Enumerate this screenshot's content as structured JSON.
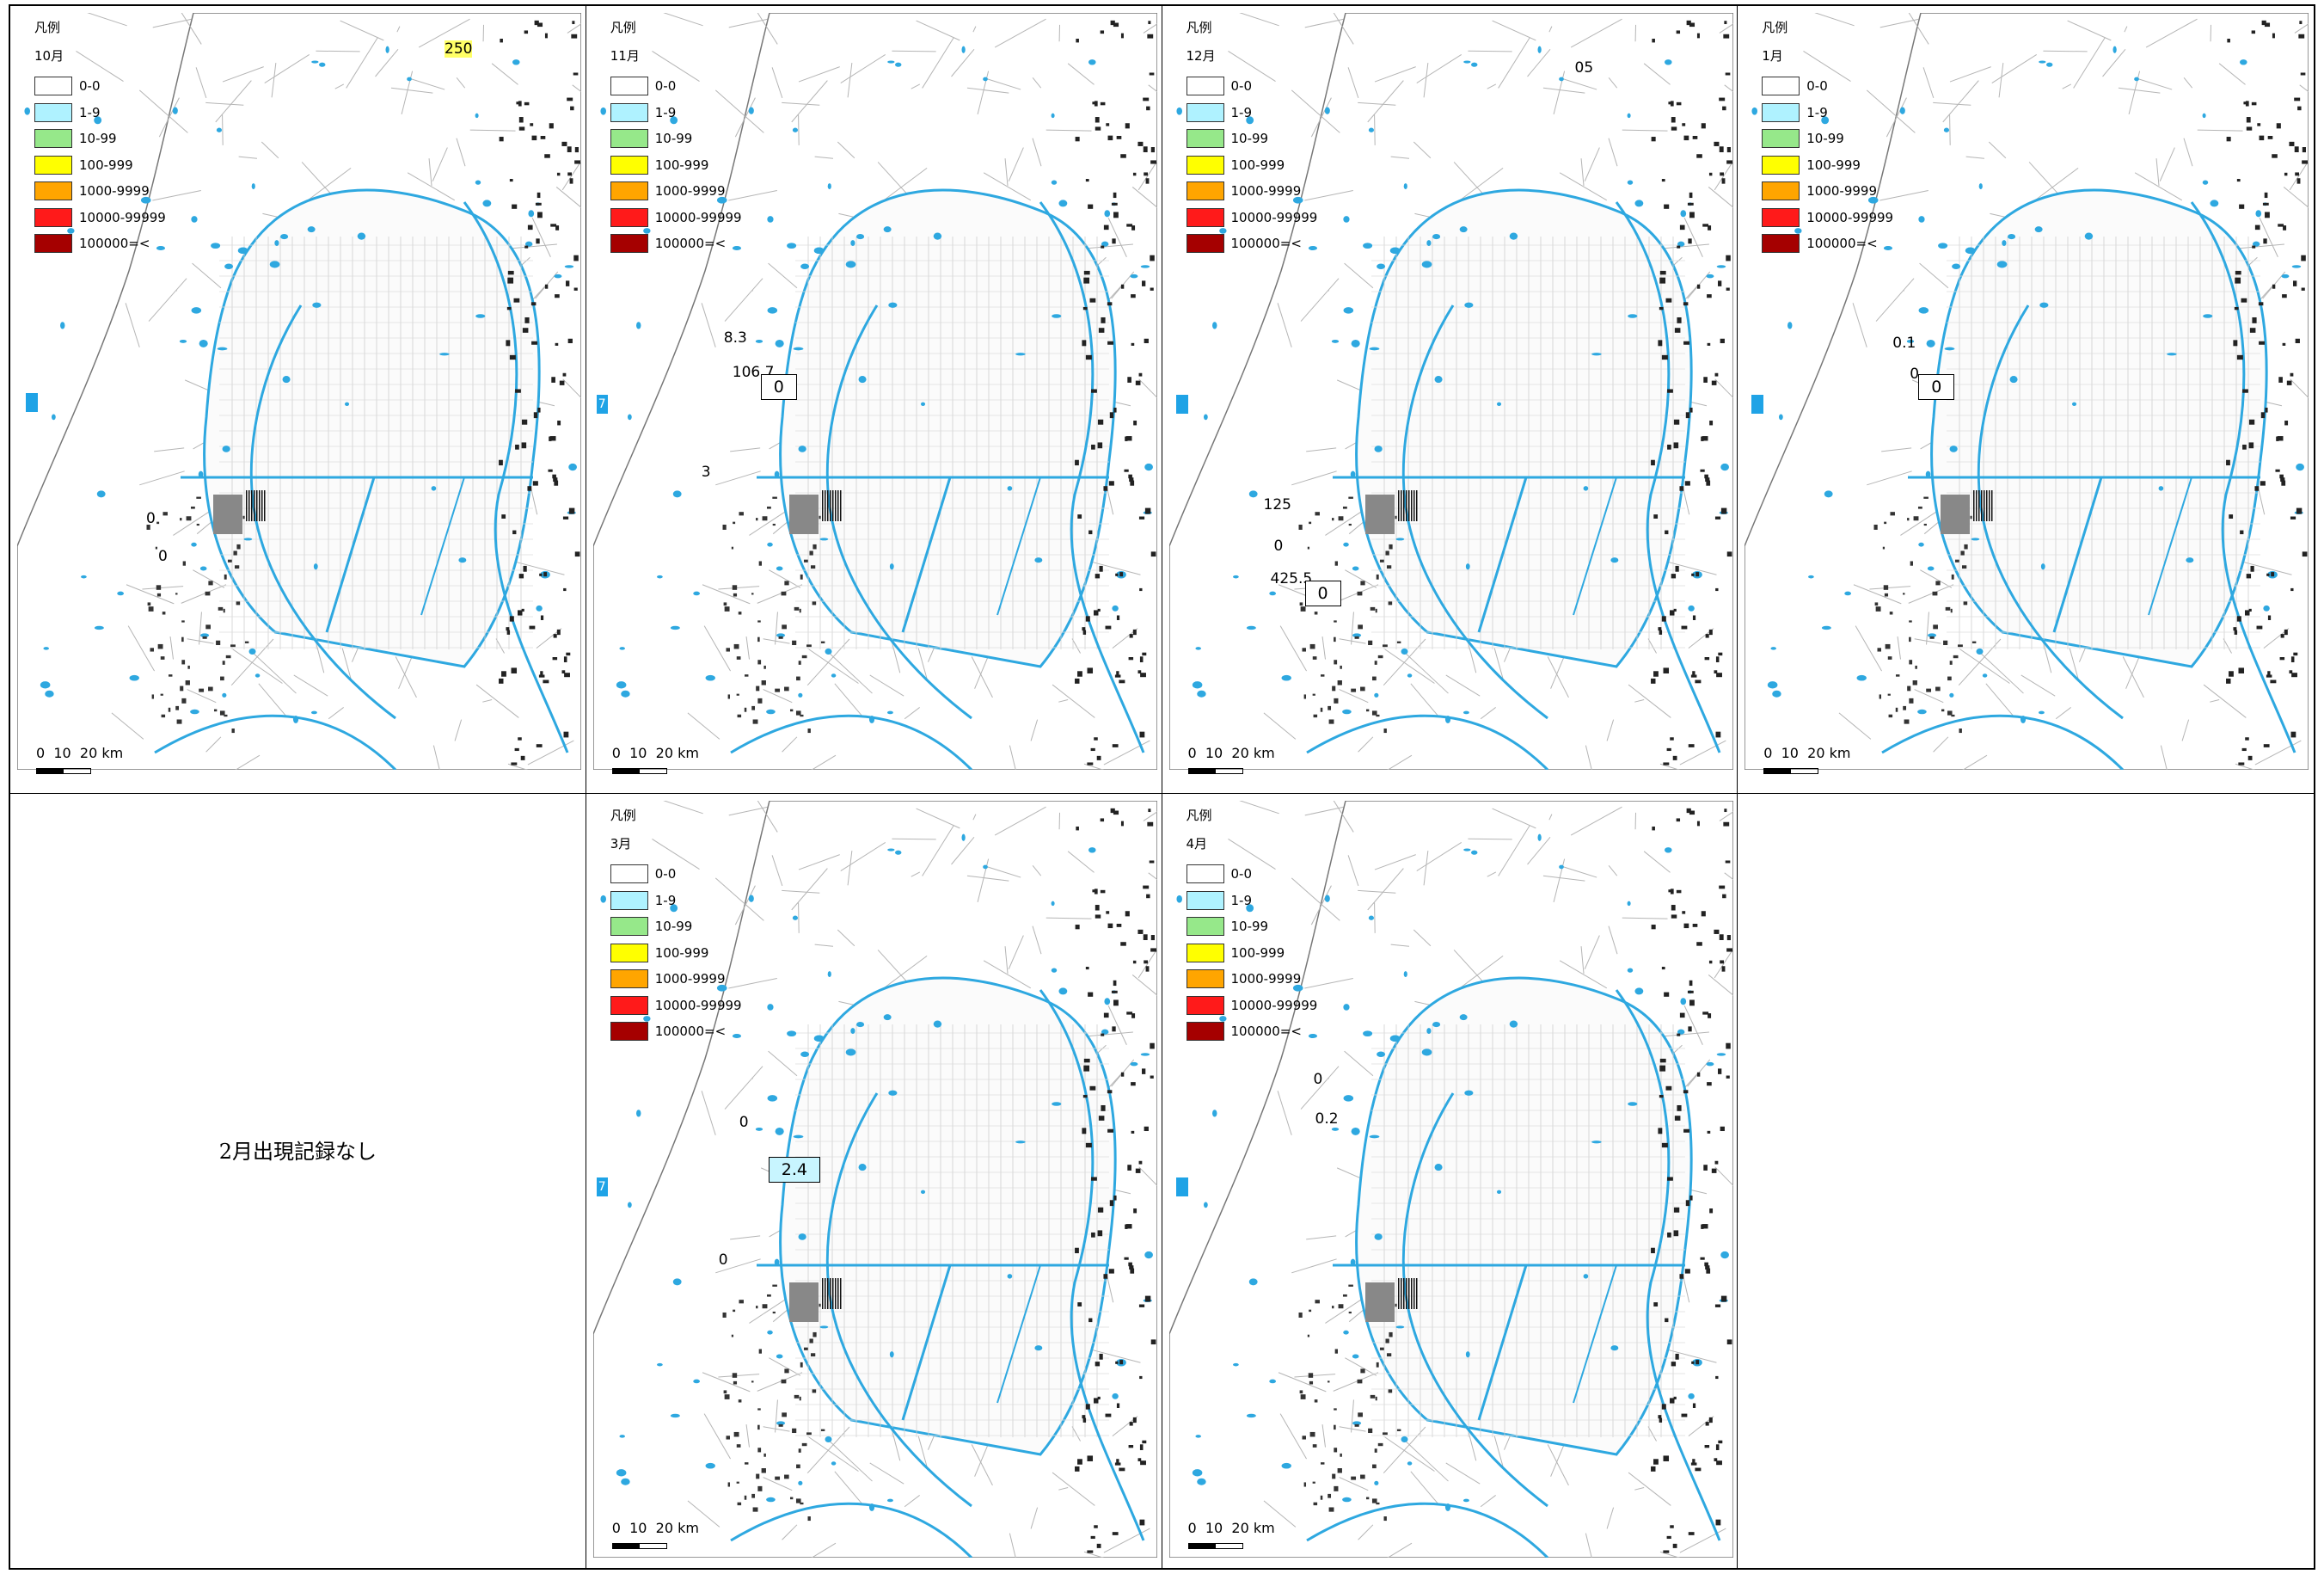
{
  "legend": {
    "title": "凡例",
    "classes": [
      {
        "label": "0-0",
        "color": "#ffffff"
      },
      {
        "label": "1-9",
        "color": "#aff2ff"
      },
      {
        "label": "10-99",
        "color": "#96e88a"
      },
      {
        "label": "100-999",
        "color": "#ffff00"
      },
      {
        "label": "1000-9999",
        "color": "#ffa500"
      },
      {
        "label": "10000-99999",
        "color": "#ff1a1a"
      },
      {
        "label": "100000=<",
        "color": "#a50000"
      }
    ]
  },
  "scalebar": {
    "label": "0  10  20 km"
  },
  "panels": [
    {
      "month": "10月",
      "values": [
        "250",
        "0",
        "0"
      ],
      "boxed": "",
      "edge": ""
    },
    {
      "month": "11月",
      "values": [
        "8.3",
        "106.7",
        "3"
      ],
      "boxed": "0",
      "edge": "7"
    },
    {
      "month": "12月",
      "values": [
        "05",
        "125",
        "0",
        "425.5"
      ],
      "boxed": "0",
      "edge": ""
    },
    {
      "month": "1月",
      "values": [
        "0.1",
        "0"
      ],
      "boxed": "0",
      "edge": ""
    },
    {
      "message": "2月出現記録なし"
    },
    {
      "month": "3月",
      "values": [
        "0",
        "0"
      ],
      "boxed": "2.4",
      "edge": "7"
    },
    {
      "month": "4月",
      "values": [
        "0",
        "0.2"
      ],
      "boxed": "",
      "edge": ""
    },
    {}
  ]
}
